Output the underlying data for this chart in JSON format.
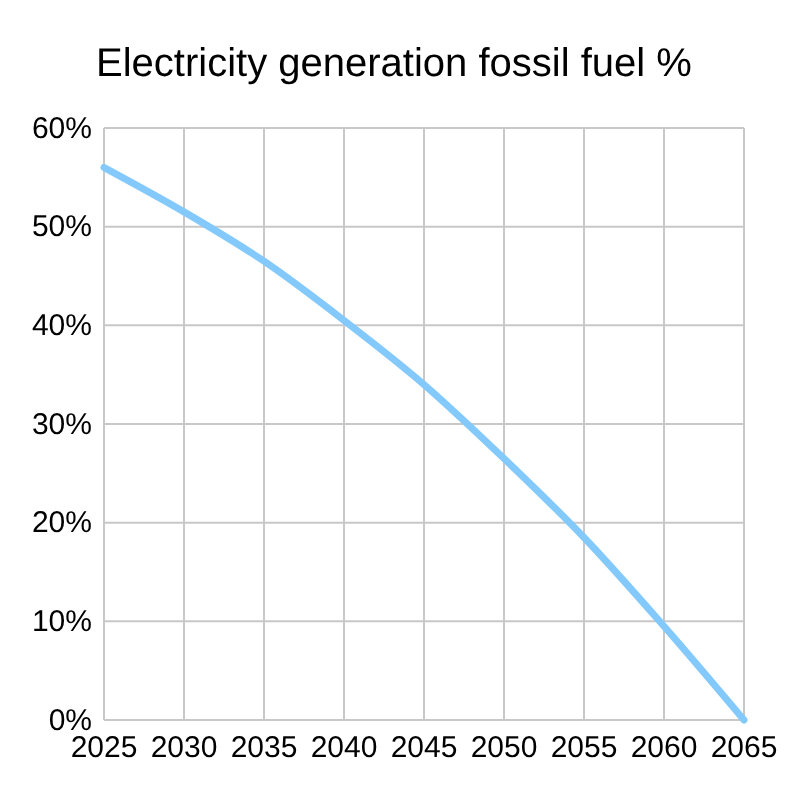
{
  "chart_data": {
    "type": "line",
    "title": "Electricity generation fossil fuel %",
    "x": [
      2025,
      2030,
      2035,
      2040,
      2045,
      2050,
      2055,
      2060,
      2065
    ],
    "series": [
      {
        "color": "#84c9fb",
        "values": [
          56,
          51.5,
          46.5,
          40.5,
          34,
          26.5,
          18.5,
          9.5,
          0
        ]
      }
    ],
    "xlim": [
      2025,
      2065
    ],
    "xticks": [
      2025,
      2030,
      2035,
      2040,
      2045,
      2050,
      2055,
      2060,
      2065
    ],
    "ylim": [
      0,
      60
    ],
    "yticks": [
      {
        "value": 0,
        "label": "0%"
      },
      {
        "value": 10,
        "label": "10%"
      },
      {
        "value": 20,
        "label": "20%"
      },
      {
        "value": 30,
        "label": "30%"
      },
      {
        "value": 40,
        "label": "40%"
      },
      {
        "value": 50,
        "label": "50%"
      },
      {
        "value": 60,
        "label": "60%"
      }
    ],
    "grid": true,
    "marker": "none",
    "line_style": "solid"
  }
}
